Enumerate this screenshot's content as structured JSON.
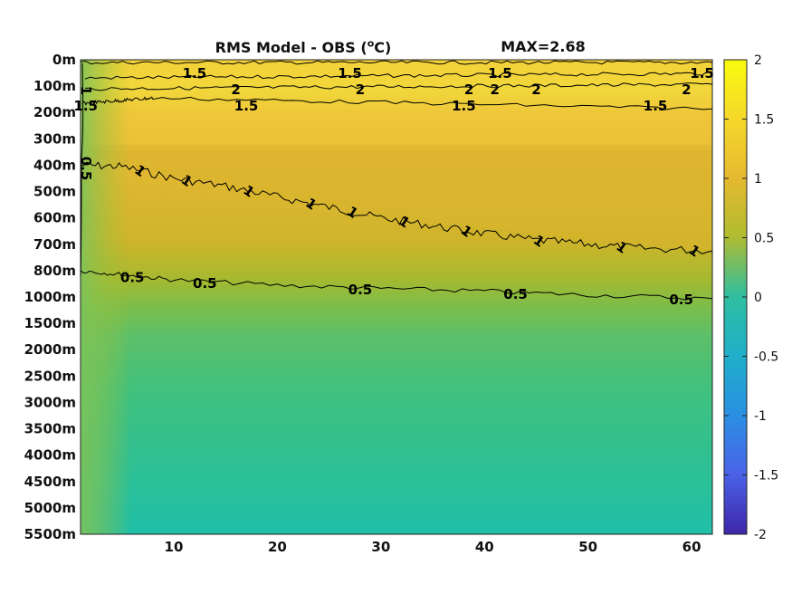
{
  "chart_data": {
    "type": "heatmap",
    "title_main": "RMS Model - OBS (°C)",
    "title_max": "MAX=2.68",
    "x_ticks": [
      10,
      20,
      30,
      40,
      50,
      60
    ],
    "xlim": [
      1,
      62
    ],
    "y_tick_labels": [
      "0m",
      "100m",
      "200m",
      "300m",
      "400m",
      "500m",
      "600m",
      "700m",
      "800m",
      "1000m",
      "1500m",
      "2000m",
      "2500m",
      "3000m",
      "3500m",
      "4000m",
      "4500m",
      "5000m",
      "5500m"
    ],
    "colorbar": {
      "min": -2,
      "max": 2,
      "ticks": [
        "2",
        "1.5",
        "1",
        "0.5",
        "0",
        "-0.5",
        "-1",
        "-1.5",
        "-2"
      ],
      "colormap": "parula"
    },
    "contours": [
      {
        "level": "2",
        "label_x": [
          16,
          28,
          38.5,
          41,
          45,
          59.5
        ],
        "depth_label": "100m"
      },
      {
        "level": "1.5",
        "label_x": [
          12,
          27,
          41.5,
          61
        ],
        "depth_label": "0m-100m"
      },
      {
        "level": "1.5",
        "label_x": [
          1.5,
          17,
          38,
          56.5
        ],
        "depth_label": "200m"
      },
      {
        "level": "1",
        "x": [
          1,
          5,
          10,
          15,
          20,
          25,
          30,
          35,
          40,
          45,
          50,
          55,
          62
        ],
        "depth_m": [
          400,
          405,
          450,
          480,
          520,
          560,
          600,
          630,
          660,
          685,
          700,
          715,
          725
        ]
      },
      {
        "level": "0.5",
        "x": [
          1,
          5,
          10,
          20,
          30,
          40,
          50,
          62
        ],
        "depth_m": [
          800,
          830,
          870,
          910,
          935,
          955,
          985,
          1030
        ]
      }
    ],
    "contour_labels_shown": [
      "1.5",
      "2",
      "1.5",
      "1",
      "0.5"
    ]
  }
}
